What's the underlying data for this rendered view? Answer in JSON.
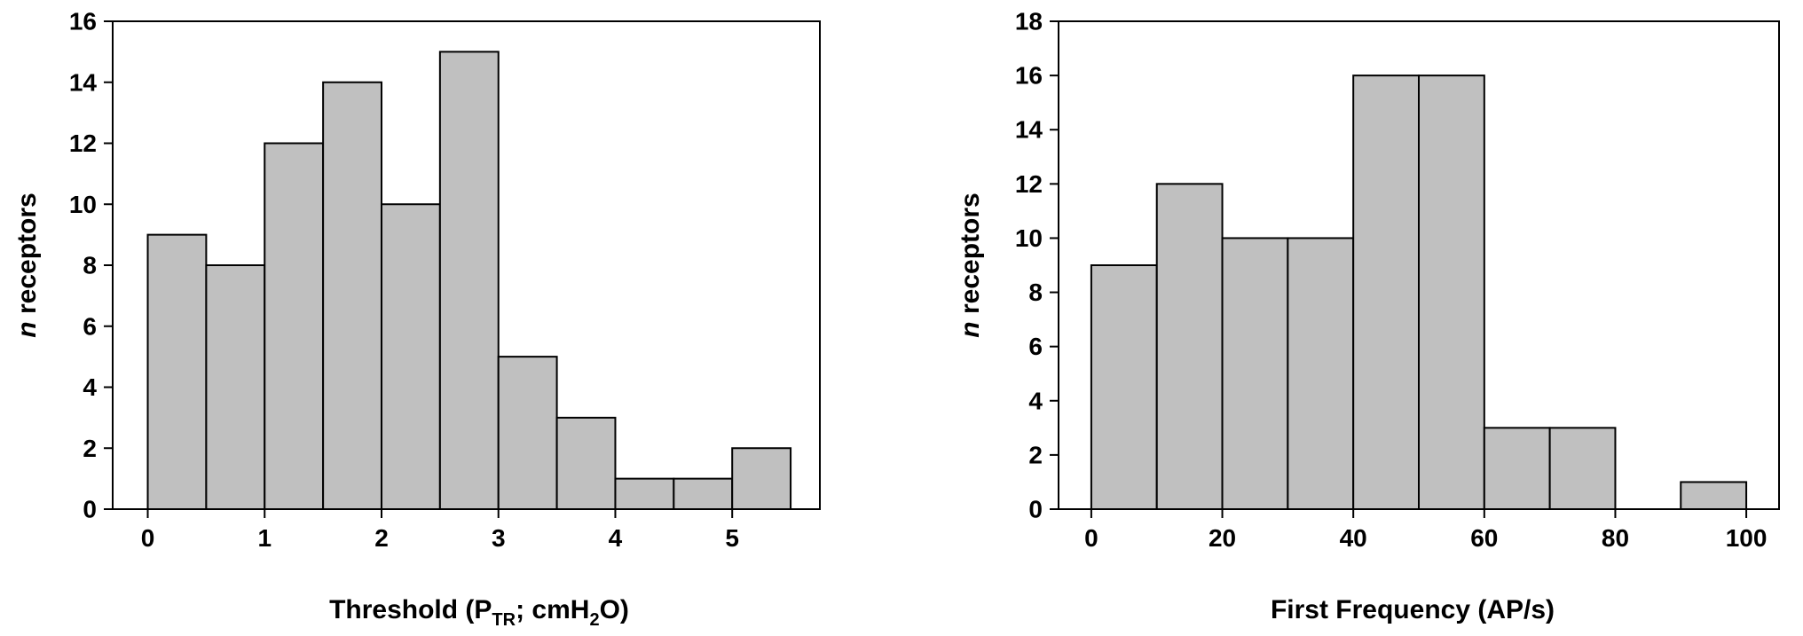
{
  "colors": {
    "bar_fill": "#c0c0c0",
    "bar_stroke": "#000000",
    "axis": "#000000",
    "background": "#ffffff"
  },
  "chart_data": [
    {
      "type": "bar",
      "histogram": true,
      "bin_edges": [
        0,
        0.5,
        1,
        1.5,
        2,
        2.5,
        3,
        3.5,
        4,
        4.5,
        5,
        5.5
      ],
      "values": [
        9,
        8,
        12,
        14,
        10,
        15,
        5,
        3,
        1,
        1,
        2
      ],
      "xlabel_parts": [
        "Threshold (P",
        "TR",
        "; cmH",
        "2",
        "O)"
      ],
      "ylabel_italic": "n",
      "ylabel_rest": " receptors",
      "xlim": [
        -0.3,
        5.75
      ],
      "ylim": [
        0,
        16
      ],
      "xticks": [
        0,
        1,
        2,
        3,
        4,
        5
      ],
      "xtick_labels": [
        "0",
        "1",
        "2",
        "3",
        "4",
        "5"
      ],
      "yticks": [
        0,
        2,
        4,
        6,
        8,
        10,
        12,
        14,
        16
      ],
      "ytick_labels": [
        "0",
        "2",
        "4",
        "6",
        "8",
        "10",
        "12",
        "14",
        "16"
      ],
      "grid": false,
      "legend": "none"
    },
    {
      "type": "bar",
      "histogram": true,
      "bin_edges": [
        0,
        10,
        20,
        30,
        40,
        50,
        60,
        70,
        80,
        90,
        100
      ],
      "values": [
        9,
        12,
        10,
        10,
        16,
        16,
        3,
        3,
        0,
        1
      ],
      "xlabel": "First Frequency (AP/s)",
      "ylabel_italic": "n",
      "ylabel_rest": " receptors",
      "xlim": [
        -5,
        105
      ],
      "ylim": [
        0,
        18
      ],
      "xticks": [
        0,
        20,
        40,
        60,
        80,
        100
      ],
      "xtick_labels": [
        "0",
        "20",
        "40",
        "60",
        "80",
        "100"
      ],
      "yticks": [
        0,
        2,
        4,
        6,
        8,
        10,
        12,
        14,
        16,
        18
      ],
      "ytick_labels": [
        "0",
        "2",
        "4",
        "6",
        "8",
        "10",
        "12",
        "14",
        "16",
        "18"
      ],
      "grid": false,
      "legend": "none"
    }
  ]
}
